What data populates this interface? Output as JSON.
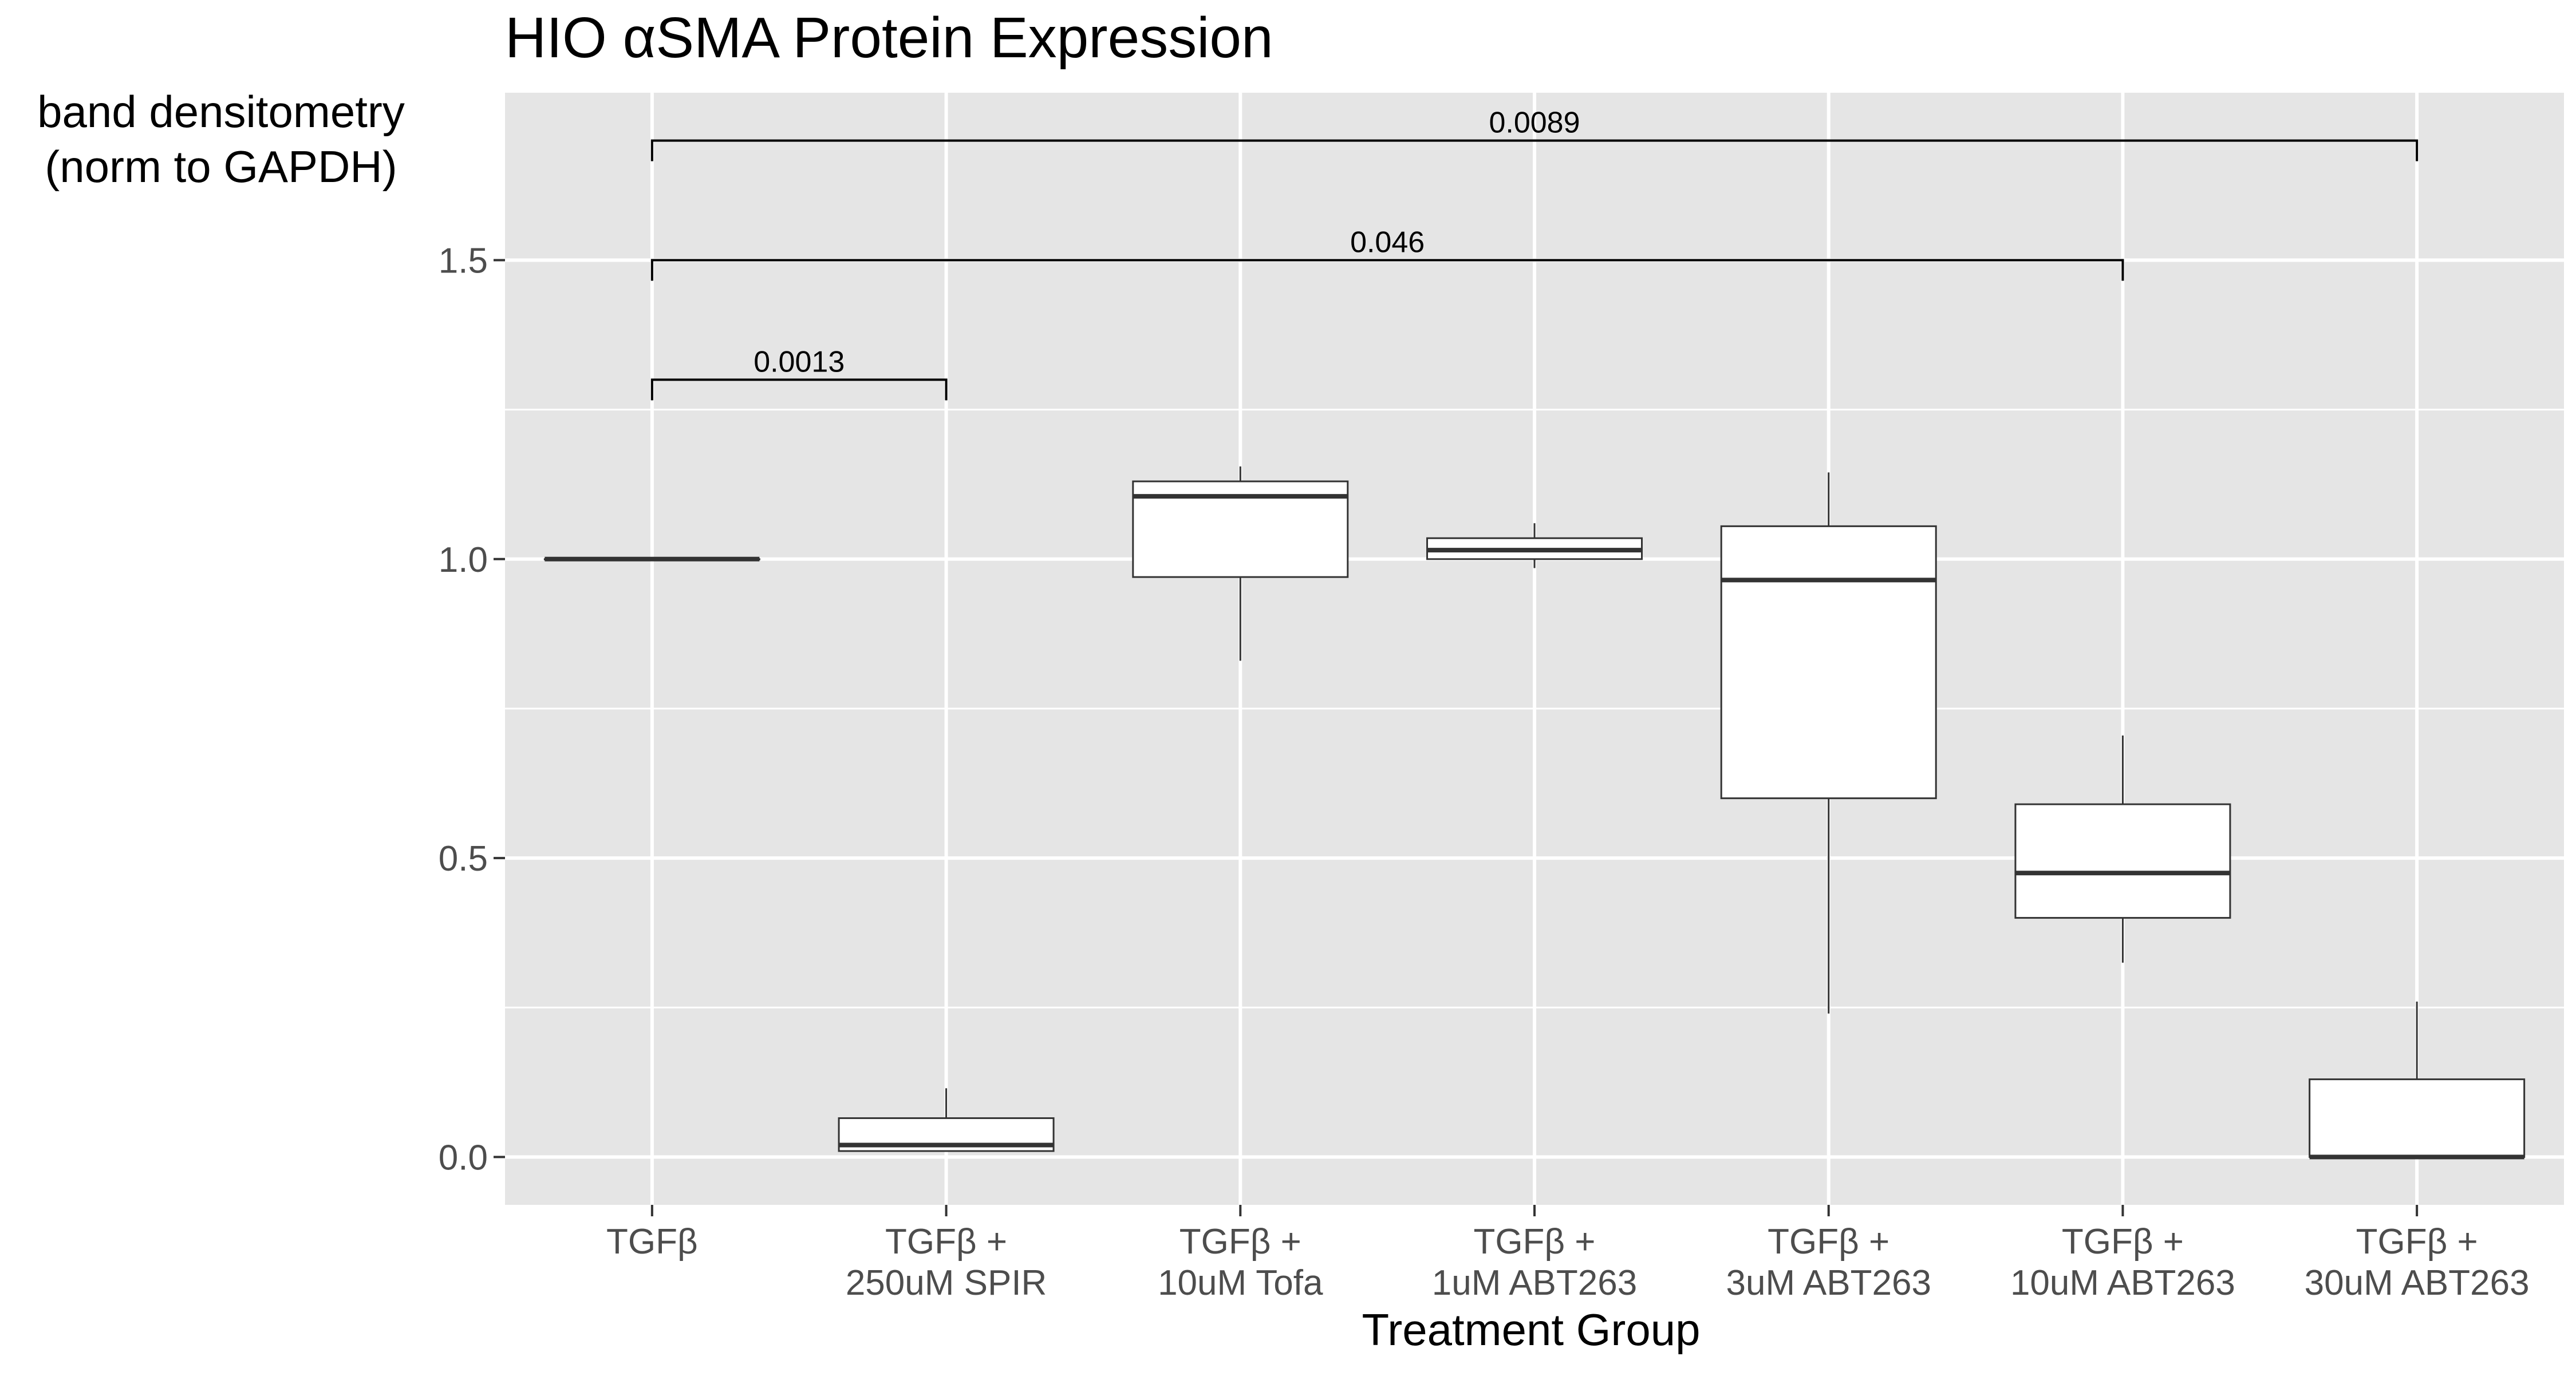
{
  "chart_data": {
    "type": "box",
    "title": "HIO αSMA Protein Expression",
    "xlabel": "Treatment Group",
    "ylabel": [
      "band densitometry",
      "(norm to GAPDH)"
    ],
    "ylim": [
      -0.08,
      1.78
    ],
    "yticks": [
      0.0,
      0.5,
      1.0,
      1.5
    ],
    "ytick_labels": [
      "0.0",
      "0.5",
      "1.0",
      "1.5"
    ],
    "grid": true,
    "categories": [
      [
        "TGFβ"
      ],
      [
        "TGFβ +",
        "250uM SPIR"
      ],
      [
        "TGFβ +",
        "10uM Tofa"
      ],
      [
        "TGFβ +",
        "1uM ABT263"
      ],
      [
        "TGFβ +",
        "3uM ABT263"
      ],
      [
        "TGFβ +",
        "10uM ABT263"
      ],
      [
        "TGFβ +",
        "30uM ABT263"
      ]
    ],
    "boxes": [
      {
        "min": 1.0,
        "q1": 1.0,
        "median": 1.0,
        "q3": 1.0,
        "max": 1.0
      },
      {
        "min": 0.01,
        "q1": 0.01,
        "median": 0.02,
        "q3": 0.065,
        "max": 0.115
      },
      {
        "min": 0.83,
        "q1": 0.97,
        "median": 1.105,
        "q3": 1.13,
        "max": 1.155
      },
      {
        "min": 0.985,
        "q1": 1.0,
        "median": 1.015,
        "q3": 1.035,
        "max": 1.06
      },
      {
        "min": 0.24,
        "q1": 0.6,
        "median": 0.965,
        "q3": 1.055,
        "max": 1.145
      },
      {
        "min": 0.325,
        "q1": 0.4,
        "median": 0.475,
        "q3": 0.59,
        "max": 0.705
      },
      {
        "min": 0.0,
        "q1": 0.0,
        "median": 0.0,
        "q3": 0.13,
        "max": 0.26
      }
    ],
    "comparisons": [
      {
        "from": 0,
        "to": 1,
        "y": 1.3,
        "label": "0.0013"
      },
      {
        "from": 0,
        "to": 5,
        "y": 1.5,
        "label": "0.046"
      },
      {
        "from": 0,
        "to": 6,
        "y": 1.7,
        "label": "0.0089"
      }
    ],
    "colors": {
      "panel": "#e5e5e5",
      "grid": "#ffffff",
      "box_fill": "#ffffff",
      "box_stroke": "#333333",
      "axis_text": "#4d4d4d",
      "text": "#000000"
    }
  }
}
